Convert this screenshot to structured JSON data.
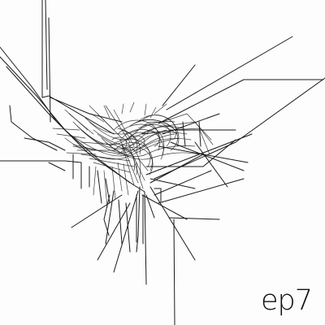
{
  "cover": {
    "title": "ep7",
    "colors": {
      "background": "#fdfdfd",
      "ink": "#1a1a1a"
    }
  }
}
